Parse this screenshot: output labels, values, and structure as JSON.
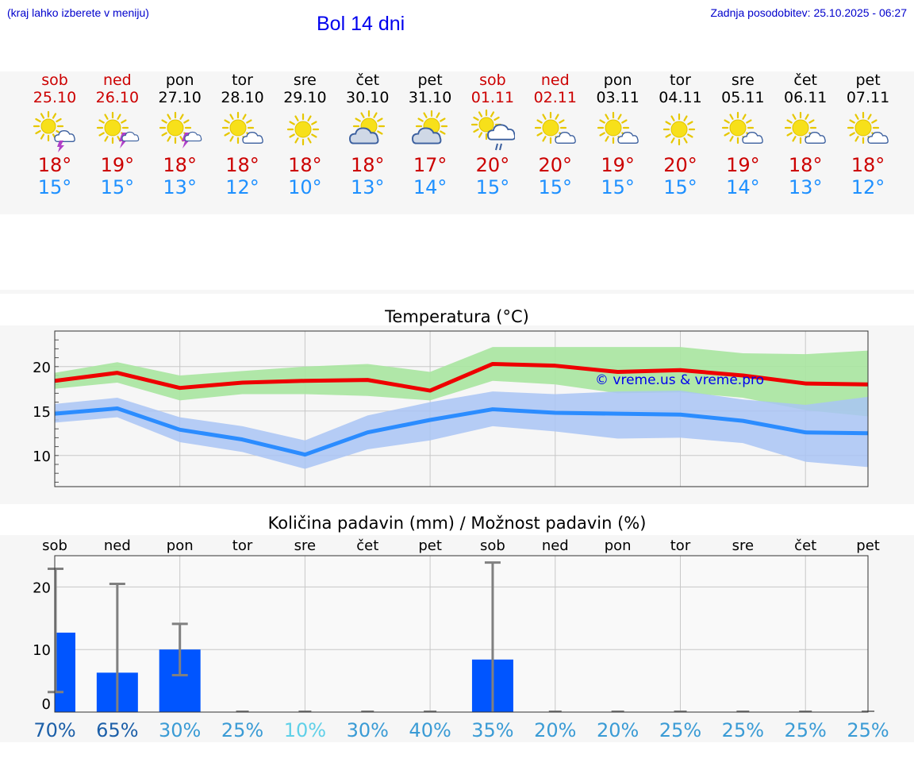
{
  "header": {
    "hint": "(kraj lahko izberete v meniju)",
    "title": "Bol 14 dni",
    "updated": "Zadnja posodobitev: 25.10.2025 - 06:27"
  },
  "days": [
    {
      "name": "sob",
      "date": "25.10",
      "weekend": true,
      "icon": "sun-cloud-thunder-icon",
      "tmax": "18°",
      "tmin": "15°"
    },
    {
      "name": "ned",
      "date": "26.10",
      "weekend": true,
      "icon": "sun-thunder-icon",
      "tmax": "19°",
      "tmin": "15°"
    },
    {
      "name": "pon",
      "date": "27.10",
      "weekend": false,
      "icon": "sun-thunder-icon",
      "tmax": "18°",
      "tmin": "13°"
    },
    {
      "name": "tor",
      "date": "28.10",
      "weekend": false,
      "icon": "sun-small-cloud-icon",
      "tmax": "18°",
      "tmin": "12°"
    },
    {
      "name": "sre",
      "date": "29.10",
      "weekend": false,
      "icon": "sun-icon",
      "tmax": "18°",
      "tmin": "10°"
    },
    {
      "name": "čet",
      "date": "30.10",
      "weekend": false,
      "icon": "partly-cloudy-icon",
      "tmax": "18°",
      "tmin": "13°"
    },
    {
      "name": "pet",
      "date": "31.10",
      "weekend": false,
      "icon": "partly-cloudy-icon",
      "tmax": "17°",
      "tmin": "14°"
    },
    {
      "name": "sob",
      "date": "01.11",
      "weekend": true,
      "icon": "sun-cloud-rain-icon",
      "tmax": "20°",
      "tmin": "15°"
    },
    {
      "name": "ned",
      "date": "02.11",
      "weekend": true,
      "icon": "sun-small-cloud-icon",
      "tmax": "20°",
      "tmin": "15°"
    },
    {
      "name": "pon",
      "date": "03.11",
      "weekend": false,
      "icon": "sun-small-cloud-icon",
      "tmax": "19°",
      "tmin": "15°"
    },
    {
      "name": "tor",
      "date": "04.11",
      "weekend": false,
      "icon": "sun-icon",
      "tmax": "20°",
      "tmin": "15°"
    },
    {
      "name": "sre",
      "date": "05.11",
      "weekend": false,
      "icon": "sun-small-cloud-icon",
      "tmax": "19°",
      "tmin": "14°"
    },
    {
      "name": "čet",
      "date": "06.11",
      "weekend": false,
      "icon": "sun-small-cloud-icon",
      "tmax": "18°",
      "tmin": "13°"
    },
    {
      "name": "pet",
      "date": "07.11",
      "weekend": false,
      "icon": "sun-small-cloud-icon",
      "tmax": "18°",
      "tmin": "12°"
    }
  ],
  "colors": {
    "weekend": "#cc0000",
    "max": "#cc0000",
    "min": "#1e90ff",
    "max_line": "#ee0000",
    "min_line": "#2b8cff",
    "max_band": "#a8e6a0",
    "min_band": "#a9c4f5",
    "bar": "#0055ff",
    "whisker": "#808080",
    "watermark": "#0000ee"
  },
  "chart_data": [
    {
      "type": "line",
      "title": "Temperatura (°C)",
      "watermark": "© vreme.us & vreme.pro",
      "ylim": [
        6.5,
        24
      ],
      "yticks": [
        "10",
        "15",
        "20"
      ],
      "grid": true,
      "x": [
        "25.10",
        "26.10",
        "27.10",
        "28.10",
        "29.10",
        "30.10",
        "31.10",
        "01.11",
        "02.11",
        "03.11",
        "04.11",
        "05.11",
        "06.11",
        "07.11"
      ],
      "series": [
        {
          "key": "max",
          "values": [
            18.4,
            19.3,
            17.6,
            18.2,
            18.4,
            18.5,
            17.3,
            20.3,
            20.1,
            19.4,
            19.6,
            19.0,
            18.1,
            18.0
          ],
          "band_low": [
            17.5,
            18.2,
            16.2,
            16.9,
            16.9,
            16.7,
            16.2,
            18.4,
            18.0,
            17.0,
            17.1,
            16.5,
            15.1,
            14.4
          ],
          "band_high": [
            19.3,
            20.5,
            19.0,
            19.5,
            20.0,
            20.3,
            19.4,
            22.2,
            22.2,
            22.2,
            22.2,
            21.5,
            21.4,
            21.8
          ]
        },
        {
          "key": "min",
          "values": [
            14.7,
            15.3,
            12.9,
            11.8,
            10.1,
            12.6,
            14.0,
            15.2,
            14.8,
            14.7,
            14.6,
            13.9,
            12.6,
            12.5
          ],
          "band_low": [
            13.7,
            14.3,
            11.5,
            10.4,
            8.5,
            10.7,
            11.7,
            13.3,
            12.7,
            11.9,
            12.0,
            11.4,
            9.3,
            8.7
          ],
          "band_high": [
            15.8,
            16.5,
            14.3,
            13.3,
            11.7,
            14.5,
            16.0,
            17.2,
            16.9,
            17.2,
            17.3,
            16.3,
            15.7,
            16.6
          ]
        }
      ]
    },
    {
      "type": "bar",
      "title": "Količina padavin (mm) / Možnost padavin (%)",
      "ylim": [
        0,
        25
      ],
      "yticks": [
        "0",
        "10",
        "20"
      ],
      "grid": true,
      "categories": [
        "sob",
        "ned",
        "pon",
        "tor",
        "sre",
        "čet",
        "pet",
        "sob",
        "ned",
        "pon",
        "tor",
        "sre",
        "čet",
        "pet"
      ],
      "values": [
        12.7,
        6.3,
        10.0,
        0,
        0,
        0,
        0,
        8.4,
        0,
        0,
        0,
        0,
        0,
        0
      ],
      "err_low": [
        3.2,
        0,
        5.9,
        0,
        0,
        0,
        0,
        0,
        0,
        0,
        0,
        0,
        0,
        0
      ],
      "err_high": [
        22.9,
        20.5,
        14.1,
        0,
        0,
        0,
        0,
        23.9,
        0,
        0,
        0,
        0,
        0,
        0
      ],
      "probabilities": [
        {
          "label": "70%",
          "color": "#1c5fa8"
        },
        {
          "label": "65%",
          "color": "#1c5fa8"
        },
        {
          "label": "30%",
          "color": "#3a9bd5"
        },
        {
          "label": "25%",
          "color": "#3a9bd5"
        },
        {
          "label": "10%",
          "color": "#5fd0e8"
        },
        {
          "label": "30%",
          "color": "#3a9bd5"
        },
        {
          "label": "40%",
          "color": "#3a9bd5"
        },
        {
          "label": "35%",
          "color": "#3a9bd5"
        },
        {
          "label": "20%",
          "color": "#3a9bd5"
        },
        {
          "label": "20%",
          "color": "#3a9bd5"
        },
        {
          "label": "25%",
          "color": "#3a9bd5"
        },
        {
          "label": "25%",
          "color": "#3a9bd5"
        },
        {
          "label": "25%",
          "color": "#3a9bd5"
        },
        {
          "label": "25%",
          "color": "#3a9bd5"
        }
      ]
    }
  ]
}
